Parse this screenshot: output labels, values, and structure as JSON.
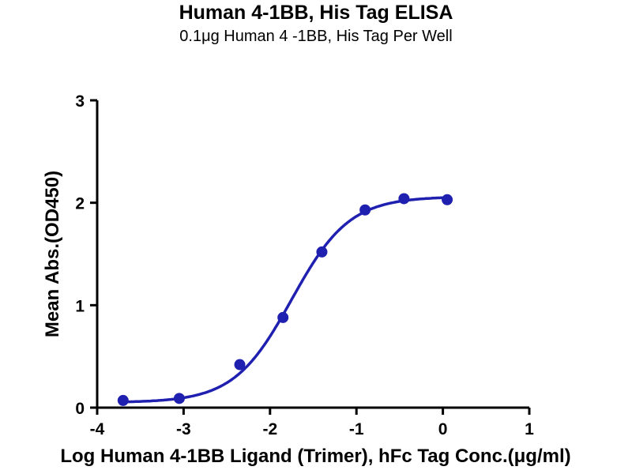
{
  "page": {
    "title": "Human 4-1BB, His Tag ELISA",
    "subtitle": "0.1μg Human 4 -1BB, His Tag Per Well"
  },
  "chart_data": {
    "type": "scatter",
    "title": "Human 4-1BB, His Tag ELISA",
    "subtitle": "0.1μg Human 4 -1BB, His Tag Per Well",
    "xlabel": "Log Human 4-1BB Ligand (Trimer), hFc Tag Conc.(μg/ml)",
    "ylabel": "Mean Abs.(OD450)",
    "xlim": [
      -4,
      1
    ],
    "ylim": [
      0,
      3
    ],
    "xticks": [
      "-4",
      "-3",
      "-2",
      "-1",
      "0",
      "1"
    ],
    "xtick_values": [
      -4,
      -3,
      -2,
      -1,
      0,
      1
    ],
    "yticks": [
      "0",
      "1",
      "2",
      "3"
    ],
    "ytick_values": [
      0,
      1,
      2,
      3
    ],
    "grid": false,
    "legend": "none",
    "points": [
      {
        "x": -3.7,
        "y": 0.07
      },
      {
        "x": -3.05,
        "y": 0.09
      },
      {
        "x": -2.35,
        "y": 0.42
      },
      {
        "x": -1.85,
        "y": 0.88
      },
      {
        "x": -1.4,
        "y": 1.52
      },
      {
        "x": -0.9,
        "y": 1.93
      },
      {
        "x": -0.45,
        "y": 2.04
      },
      {
        "x": 0.05,
        "y": 2.03
      }
    ],
    "fit": {
      "model": "4PL",
      "bottom": 0.05,
      "top": 2.06,
      "logEC50": -1.75,
      "hill": 1.3
    },
    "curve_x_range": [
      -3.7,
      0.05
    ],
    "colors": {
      "series": "#2020b0",
      "axis": "#000000"
    }
  }
}
